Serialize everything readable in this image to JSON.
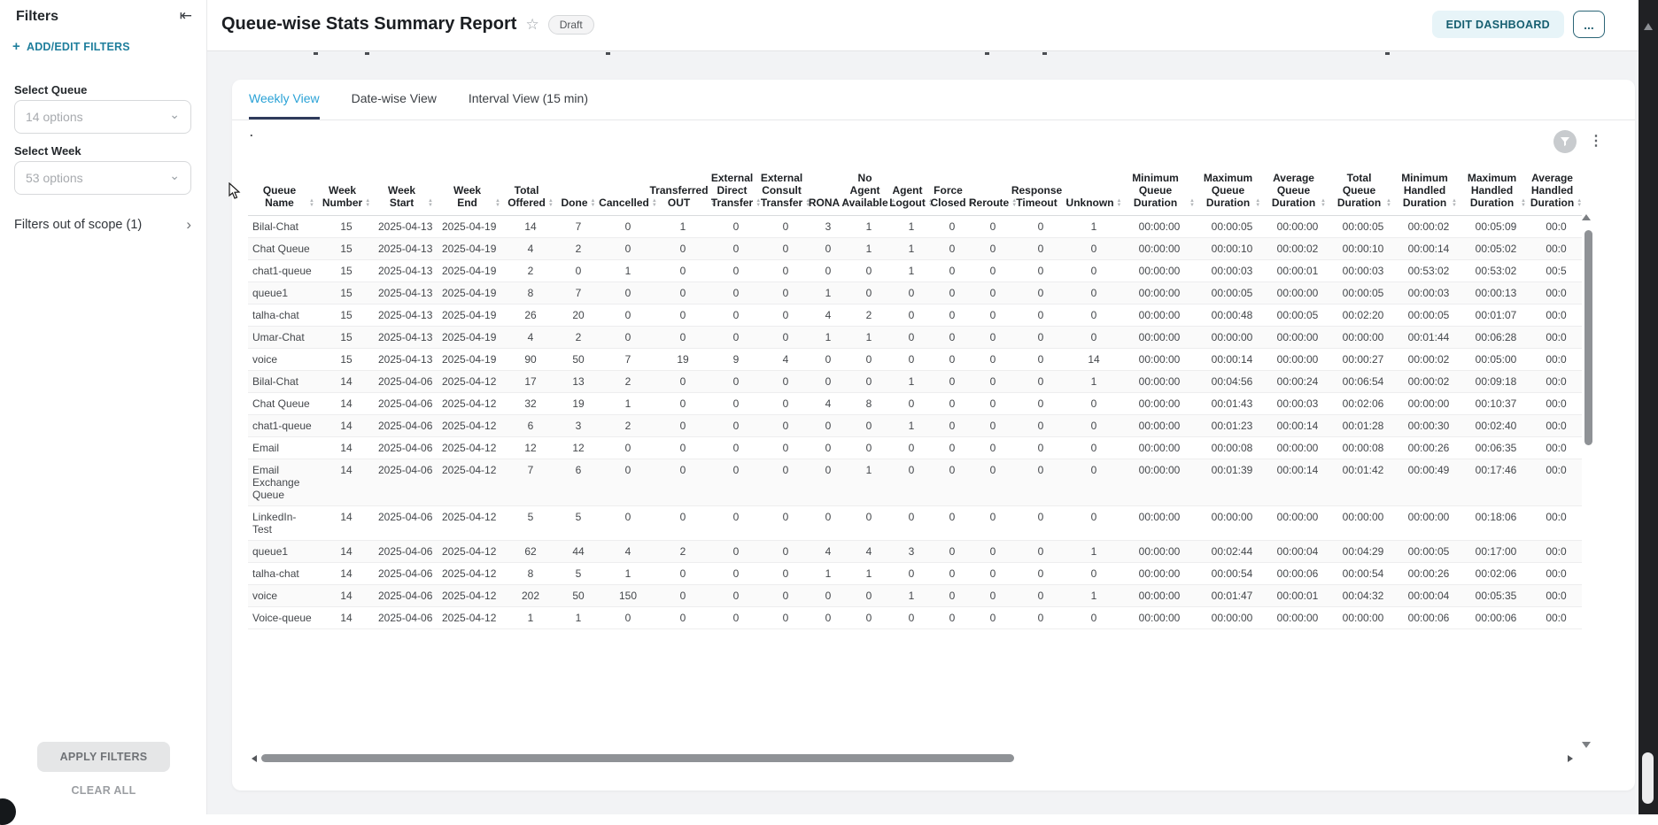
{
  "sidebar": {
    "title": "Filters",
    "add_filters_label": "ADD/EDIT FILTERS",
    "queue_label": "Select Queue",
    "queue_value": "14 options",
    "week_label": "Select Week",
    "week_value": "53 options",
    "out_of_scope_label": "Filters out of scope (1)",
    "apply_label": "APPLY FILTERS",
    "clear_label": "CLEAR ALL"
  },
  "header": {
    "title": "Queue-wise Stats Summary Report",
    "badge": "Draft",
    "edit_label": "EDIT DASHBOARD",
    "more_label": "..."
  },
  "tabs": [
    {
      "label": "Weekly View",
      "active": true
    },
    {
      "label": "Date-wise View",
      "active": false
    },
    {
      "label": "Interval View (15 min)",
      "active": false
    }
  ],
  "widget_dot": ".",
  "icons": {
    "collapse": "⇤",
    "plus": "+",
    "chevron_down": "⌄",
    "chevron_right": "›",
    "star": "☆",
    "kebab": "⋮"
  },
  "colors": {
    "accent_teal": "#1e7e9c",
    "tab_active_text": "#2aa2d6",
    "tab_underline": "#2f3b5c",
    "edit_button_bg": "#e7f4f8",
    "edit_button_text": "#155e70"
  },
  "table": {
    "columns": [
      "Queue Name",
      "Week Number",
      "Week Start",
      "Week End",
      "Total Offered",
      "Done",
      "Cancelled",
      "Transferred OUT",
      "External Direct Transfer",
      "External Consult Transfer",
      "RONA",
      "No Agent Available",
      "Agent Logout",
      "Force Closed",
      "Reroute",
      "Response Timeout",
      "Unknown",
      "Minimum Queue Duration",
      "Maximum Queue Duration",
      "Average Queue Duration",
      "Total Queue Duration",
      "Minimum Handled Duration",
      "Maximum Handled Duration",
      "Average Handled Duration"
    ],
    "rows": [
      [
        "Bilal-Chat",
        "15",
        "2025-04-13",
        "2025-04-19",
        "14",
        "7",
        "0",
        "1",
        "0",
        "0",
        "3",
        "1",
        "1",
        "0",
        "0",
        "0",
        "1",
        "00:00:00",
        "00:00:05",
        "00:00:00",
        "00:00:05",
        "00:00:02",
        "00:05:09",
        "00:0"
      ],
      [
        "Chat Queue",
        "15",
        "2025-04-13",
        "2025-04-19",
        "4",
        "2",
        "0",
        "0",
        "0",
        "0",
        "0",
        "1",
        "1",
        "0",
        "0",
        "0",
        "0",
        "00:00:00",
        "00:00:10",
        "00:00:02",
        "00:00:10",
        "00:00:14",
        "00:05:02",
        "00:0"
      ],
      [
        "chat1-queue",
        "15",
        "2025-04-13",
        "2025-04-19",
        "2",
        "0",
        "1",
        "0",
        "0",
        "0",
        "0",
        "0",
        "1",
        "0",
        "0",
        "0",
        "0",
        "00:00:00",
        "00:00:03",
        "00:00:01",
        "00:00:03",
        "00:53:02",
        "00:53:02",
        "00:5"
      ],
      [
        "queue1",
        "15",
        "2025-04-13",
        "2025-04-19",
        "8",
        "7",
        "0",
        "0",
        "0",
        "0",
        "1",
        "0",
        "0",
        "0",
        "0",
        "0",
        "0",
        "00:00:00",
        "00:00:05",
        "00:00:00",
        "00:00:05",
        "00:00:03",
        "00:00:13",
        "00:0"
      ],
      [
        "talha-chat",
        "15",
        "2025-04-13",
        "2025-04-19",
        "26",
        "20",
        "0",
        "0",
        "0",
        "0",
        "4",
        "2",
        "0",
        "0",
        "0",
        "0",
        "0",
        "00:00:00",
        "00:00:48",
        "00:00:05",
        "00:02:20",
        "00:00:05",
        "00:01:07",
        "00:0"
      ],
      [
        "Umar-Chat",
        "15",
        "2025-04-13",
        "2025-04-19",
        "4",
        "2",
        "0",
        "0",
        "0",
        "0",
        "1",
        "1",
        "0",
        "0",
        "0",
        "0",
        "0",
        "00:00:00",
        "00:00:00",
        "00:00:00",
        "00:00:00",
        "00:01:44",
        "00:06:28",
        "00:0"
      ],
      [
        "voice",
        "15",
        "2025-04-13",
        "2025-04-19",
        "90",
        "50",
        "7",
        "19",
        "9",
        "4",
        "0",
        "0",
        "0",
        "0",
        "0",
        "0",
        "14",
        "00:00:00",
        "00:00:14",
        "00:00:00",
        "00:00:27",
        "00:00:02",
        "00:05:00",
        "00:0"
      ],
      [
        "Bilal-Chat",
        "14",
        "2025-04-06",
        "2025-04-12",
        "17",
        "13",
        "2",
        "0",
        "0",
        "0",
        "0",
        "0",
        "1",
        "0",
        "0",
        "0",
        "1",
        "00:00:00",
        "00:04:56",
        "00:00:24",
        "00:06:54",
        "00:00:02",
        "00:09:18",
        "00:0"
      ],
      [
        "Chat Queue",
        "14",
        "2025-04-06",
        "2025-04-12",
        "32",
        "19",
        "1",
        "0",
        "0",
        "0",
        "4",
        "8",
        "0",
        "0",
        "0",
        "0",
        "0",
        "00:00:00",
        "00:01:43",
        "00:00:03",
        "00:02:06",
        "00:00:00",
        "00:10:37",
        "00:0"
      ],
      [
        "chat1-queue",
        "14",
        "2025-04-06",
        "2025-04-12",
        "6",
        "3",
        "2",
        "0",
        "0",
        "0",
        "0",
        "0",
        "1",
        "0",
        "0",
        "0",
        "0",
        "00:00:00",
        "00:01:23",
        "00:00:14",
        "00:01:28",
        "00:00:30",
        "00:02:40",
        "00:0"
      ],
      [
        "Email",
        "14",
        "2025-04-06",
        "2025-04-12",
        "12",
        "12",
        "0",
        "0",
        "0",
        "0",
        "0",
        "0",
        "0",
        "0",
        "0",
        "0",
        "0",
        "00:00:00",
        "00:00:08",
        "00:00:00",
        "00:00:08",
        "00:00:26",
        "00:06:35",
        "00:0"
      ],
      [
        "Email Exchange Queue",
        "14",
        "2025-04-06",
        "2025-04-12",
        "7",
        "6",
        "0",
        "0",
        "0",
        "0",
        "0",
        "1",
        "0",
        "0",
        "0",
        "0",
        "0",
        "00:00:00",
        "00:01:39",
        "00:00:14",
        "00:01:42",
        "00:00:49",
        "00:17:46",
        "00:0"
      ],
      [
        "LinkedIn-Test",
        "14",
        "2025-04-06",
        "2025-04-12",
        "5",
        "5",
        "0",
        "0",
        "0",
        "0",
        "0",
        "0",
        "0",
        "0",
        "0",
        "0",
        "0",
        "00:00:00",
        "00:00:00",
        "00:00:00",
        "00:00:00",
        "00:00:00",
        "00:18:06",
        "00:0"
      ],
      [
        "queue1",
        "14",
        "2025-04-06",
        "2025-04-12",
        "62",
        "44",
        "4",
        "2",
        "0",
        "0",
        "4",
        "4",
        "3",
        "0",
        "0",
        "0",
        "1",
        "00:00:00",
        "00:02:44",
        "00:00:04",
        "00:04:29",
        "00:00:05",
        "00:17:00",
        "00:0"
      ],
      [
        "talha-chat",
        "14",
        "2025-04-06",
        "2025-04-12",
        "8",
        "5",
        "1",
        "0",
        "0",
        "0",
        "1",
        "1",
        "0",
        "0",
        "0",
        "0",
        "0",
        "00:00:00",
        "00:00:54",
        "00:00:06",
        "00:00:54",
        "00:00:26",
        "00:02:06",
        "00:0"
      ],
      [
        "voice",
        "14",
        "2025-04-06",
        "2025-04-12",
        "202",
        "50",
        "150",
        "0",
        "0",
        "0",
        "0",
        "0",
        "1",
        "0",
        "0",
        "0",
        "1",
        "00:00:00",
        "00:01:47",
        "00:00:01",
        "00:04:32",
        "00:00:04",
        "00:05:35",
        "00:0"
      ],
      [
        "Voice-queue",
        "14",
        "2025-04-06",
        "2025-04-12",
        "1",
        "1",
        "0",
        "0",
        "0",
        "0",
        "0",
        "0",
        "0",
        "0",
        "0",
        "0",
        "0",
        "00:00:00",
        "00:00:00",
        "00:00:00",
        "00:00:00",
        "00:00:06",
        "00:00:06",
        "00:0"
      ]
    ]
  }
}
